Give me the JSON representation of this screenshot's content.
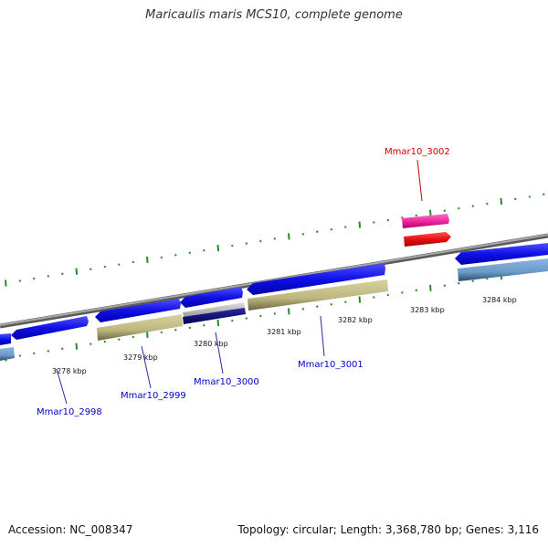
{
  "title": "Maricaulis maris MCS10, complete genome",
  "footer": {
    "accession": "Accession: NC_008347",
    "summary": "Topology: circular; Length: 3,368,780 bp; Genes: 3,116"
  },
  "scale_labels": [
    "3278 kbp",
    "3279 kbp",
    "3280 kbp",
    "3281 kbp",
    "3282 kbp",
    "3283 kbp",
    "3284 kbp"
  ],
  "gene_labels": [
    {
      "text": "Mmar10_3002",
      "color": "#cc0000"
    },
    {
      "text": "Mmar10_2998",
      "color": "#0000cc"
    },
    {
      "text": "Mmar10_2999",
      "color": "#0000cc"
    },
    {
      "text": "Mmar10_3000",
      "color": "#0000cc"
    },
    {
      "text": "Mmar10_3001",
      "color": "#0000cc"
    }
  ],
  "colors": {
    "backbone": "#8a8a8a",
    "tick": "#2a8a2a",
    "cds": "#1010e8",
    "gene_track": "#6a9ac8",
    "rna": "#bdb680",
    "highlight_pink": "#ee2aa0",
    "highlight_red": "#e81010",
    "dark_navy": "#0a0a80",
    "gray_feature": "#c0c0c0"
  }
}
